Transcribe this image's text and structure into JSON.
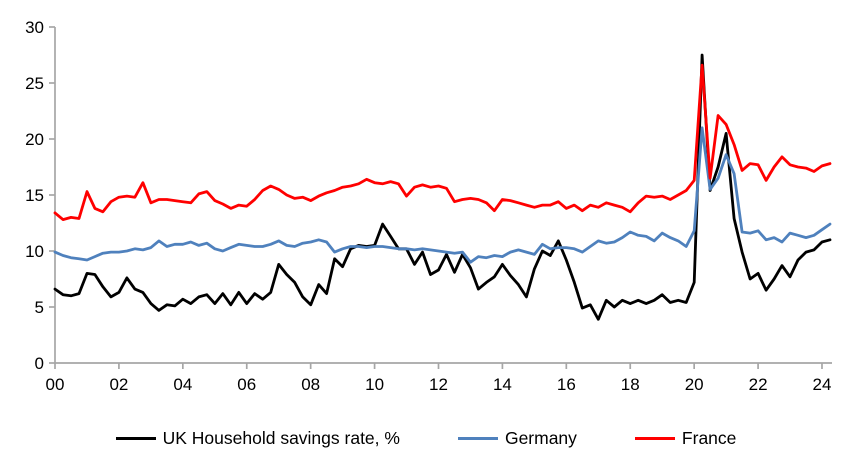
{
  "chart_data": {
    "type": "line",
    "title": "",
    "xlabel": "",
    "ylabel": "",
    "ylim": [
      0,
      30
    ],
    "xlim": [
      2000,
      2024.5
    ],
    "grid": false,
    "legend_position": "bottom",
    "y_axis_ticks": [
      0,
      5,
      10,
      15,
      20,
      25,
      30
    ],
    "x_axis_ticks": [
      {
        "label": "00",
        "year": 2000
      },
      {
        "label": "02",
        "year": 2002
      },
      {
        "label": "04",
        "year": 2004
      },
      {
        "label": "06",
        "year": 2006
      },
      {
        "label": "08",
        "year": 2008
      },
      {
        "label": "10",
        "year": 2010
      },
      {
        "label": "12",
        "year": 2012
      },
      {
        "label": "14",
        "year": 2014
      },
      {
        "label": "16",
        "year": 2016
      },
      {
        "label": "18",
        "year": 2018
      },
      {
        "label": "20",
        "year": 2020
      },
      {
        "label": "22",
        "year": 2022
      },
      {
        "label": "24",
        "year": 2024
      }
    ],
    "x_start": 2000,
    "x_step_years": 0.25,
    "frequency": "quarterly",
    "series": [
      {
        "name": "UK Household savings rate, %",
        "color": "#000000",
        "values": [
          6.6,
          6.1,
          6.0,
          6.2,
          8.0,
          7.9,
          6.8,
          5.9,
          6.3,
          7.6,
          6.6,
          6.3,
          5.3,
          4.7,
          5.2,
          5.1,
          5.7,
          5.3,
          5.9,
          6.1,
          5.3,
          6.2,
          5.2,
          6.3,
          5.3,
          6.2,
          5.7,
          6.3,
          8.8,
          7.9,
          7.2,
          5.9,
          5.2,
          7.0,
          6.2,
          9.3,
          8.6,
          10.2,
          10.5,
          10.4,
          10.5,
          12.4,
          11.3,
          10.2,
          10.2,
          8.8,
          9.9,
          7.9,
          8.3,
          9.7,
          8.1,
          9.7,
          8.5,
          6.6,
          7.2,
          7.7,
          8.8,
          7.8,
          7.0,
          5.9,
          8.4,
          10.0,
          9.6,
          10.9,
          9.2,
          7.2,
          4.9,
          5.2,
          3.9,
          5.6,
          5.0,
          5.6,
          5.3,
          5.6,
          5.3,
          5.6,
          6.1,
          5.4,
          5.6,
          5.4,
          7.2,
          27.5,
          15.4,
          17.5,
          20.5,
          12.9,
          9.9,
          7.5,
          8.0,
          6.5,
          7.5,
          8.7,
          7.7,
          9.2,
          9.9,
          10.1,
          10.8,
          11.0
        ]
      },
      {
        "name": "Germany",
        "color": "#4F81BD",
        "values": [
          9.9,
          9.6,
          9.4,
          9.3,
          9.2,
          9.5,
          9.8,
          9.9,
          9.9,
          10.0,
          10.2,
          10.1,
          10.3,
          10.9,
          10.4,
          10.6,
          10.6,
          10.8,
          10.5,
          10.7,
          10.2,
          10.0,
          10.3,
          10.6,
          10.5,
          10.4,
          10.4,
          10.6,
          10.9,
          10.5,
          10.4,
          10.7,
          10.8,
          11.0,
          10.8,
          9.9,
          10.2,
          10.4,
          10.4,
          10.3,
          10.4,
          10.4,
          10.3,
          10.2,
          10.2,
          10.1,
          10.2,
          10.1,
          10.0,
          9.9,
          9.8,
          9.9,
          9.0,
          9.5,
          9.4,
          9.6,
          9.5,
          9.9,
          10.1,
          9.9,
          9.7,
          10.6,
          10.2,
          10.3,
          10.3,
          10.2,
          9.9,
          10.4,
          10.9,
          10.7,
          10.8,
          11.2,
          11.7,
          11.4,
          11.3,
          10.9,
          11.6,
          11.2,
          10.9,
          10.4,
          11.8,
          21.0,
          15.5,
          16.5,
          18.6,
          16.9,
          11.7,
          11.6,
          11.8,
          11.0,
          11.2,
          10.8,
          11.6,
          11.4,
          11.2,
          11.4,
          11.9,
          12.4
        ]
      },
      {
        "name": "France",
        "color": "#FF0000",
        "values": [
          13.4,
          12.8,
          13.0,
          12.9,
          15.3,
          13.8,
          13.5,
          14.4,
          14.8,
          14.9,
          14.8,
          16.1,
          14.3,
          14.6,
          14.6,
          14.5,
          14.4,
          14.3,
          15.1,
          15.3,
          14.5,
          14.2,
          13.8,
          14.1,
          14.0,
          14.6,
          15.4,
          15.8,
          15.5,
          15.0,
          14.7,
          14.8,
          14.5,
          14.9,
          15.2,
          15.4,
          15.7,
          15.8,
          16.0,
          16.4,
          16.1,
          16.0,
          16.2,
          16.0,
          14.9,
          15.7,
          15.9,
          15.7,
          15.8,
          15.6,
          14.4,
          14.6,
          14.7,
          14.6,
          14.3,
          13.6,
          14.6,
          14.5,
          14.3,
          14.1,
          13.9,
          14.1,
          14.1,
          14.4,
          13.8,
          14.1,
          13.6,
          14.1,
          13.9,
          14.3,
          14.1,
          13.9,
          13.5,
          14.3,
          14.9,
          14.8,
          14.9,
          14.6,
          15.0,
          15.4,
          16.3,
          26.6,
          16.5,
          22.1,
          21.3,
          19.5,
          17.2,
          17.8,
          17.7,
          16.3,
          17.5,
          18.4,
          17.7,
          17.5,
          17.4,
          17.1,
          17.6,
          17.8
        ]
      }
    ],
    "axis_color": "#A6A6A6",
    "text_color": "#000000",
    "background_color": "#FFFFFF"
  },
  "legend": {
    "items": [
      {
        "label": "UK Household savings rate, %"
      },
      {
        "label": "Germany"
      },
      {
        "label": "France"
      }
    ]
  }
}
